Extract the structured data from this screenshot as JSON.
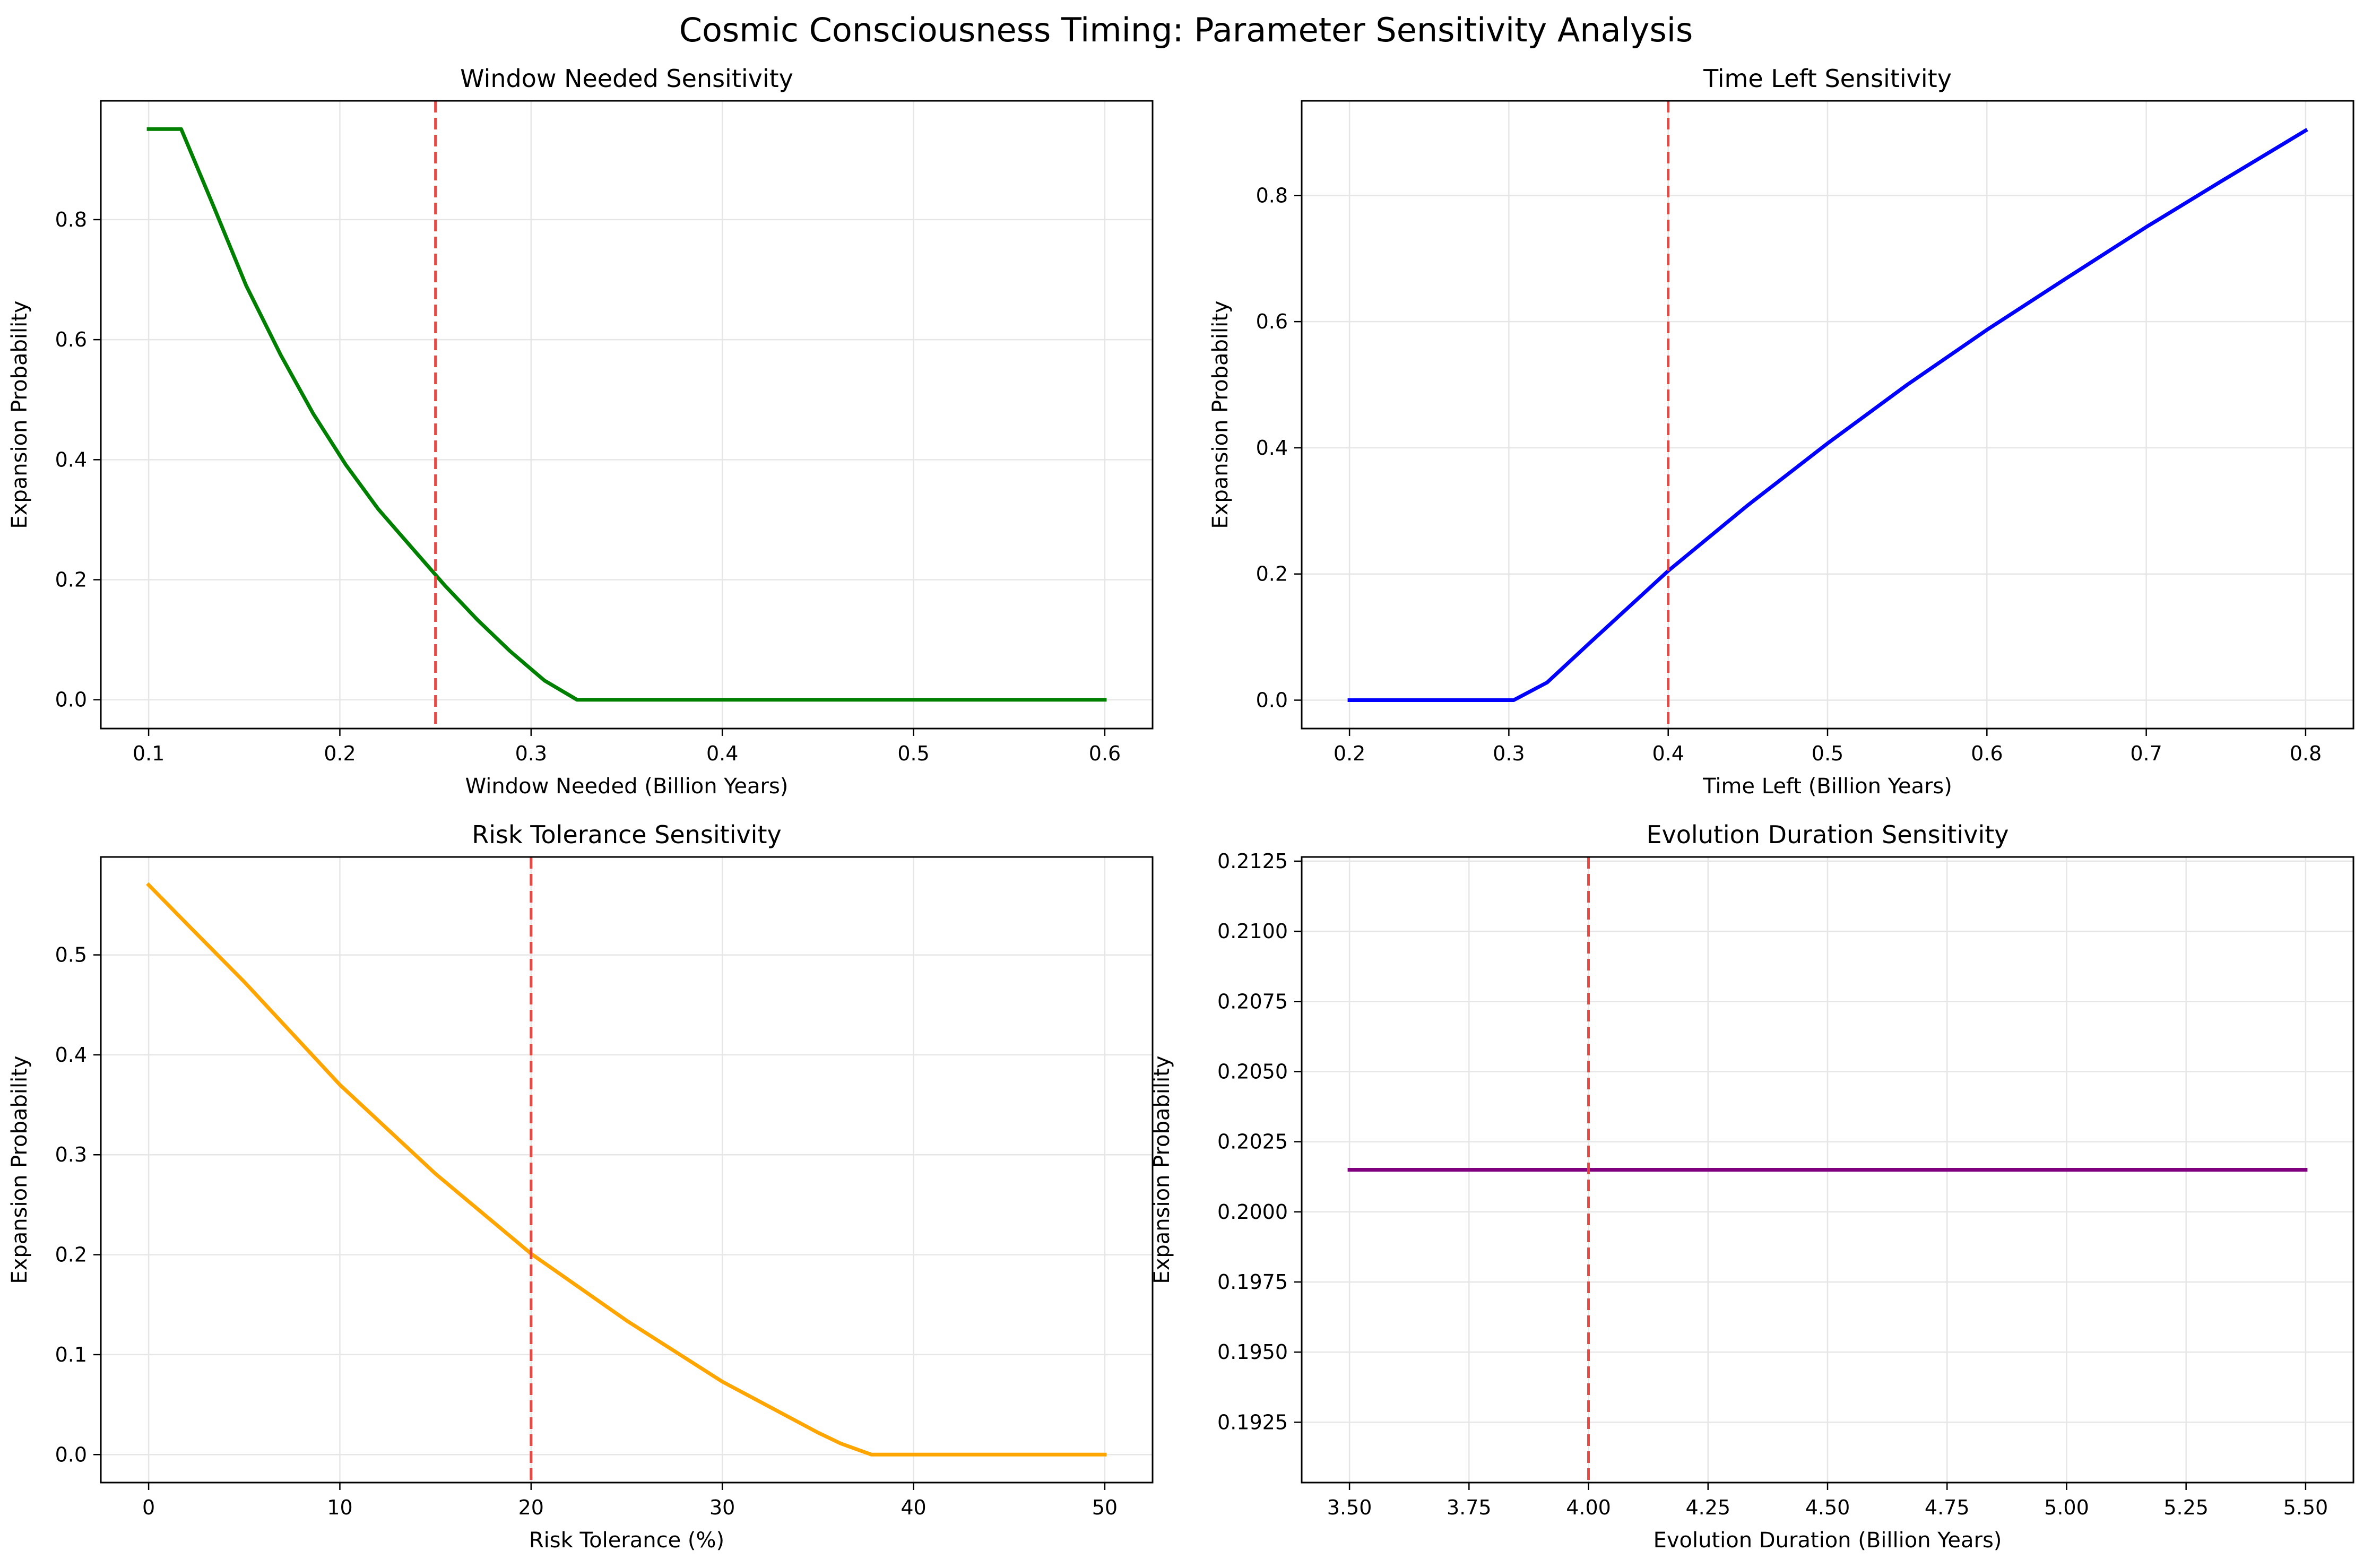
{
  "figure": {
    "suptitle": "Cosmic Consciousness Timing: Parameter Sensitivity Analysis"
  },
  "chart_data": [
    {
      "type": "line",
      "title": "Window Needed Sensitivity",
      "xlabel": "Window Needed (Billion Years)",
      "ylabel": "Expansion Probability",
      "xlim": [
        0.075,
        0.625
      ],
      "ylim": [
        -0.048,
        0.998
      ],
      "xticks": [
        0.1,
        0.2,
        0.3,
        0.4,
        0.5,
        0.6
      ],
      "xtick_labels": [
        "0.1",
        "0.2",
        "0.3",
        "0.4",
        "0.5",
        "0.6"
      ],
      "yticks": [
        0.0,
        0.2,
        0.4,
        0.6,
        0.8
      ],
      "ytick_labels": [
        "0.0",
        "0.2",
        "0.4",
        "0.6",
        "0.8"
      ],
      "grid": true,
      "series": [
        {
          "color": "#008000",
          "x": [
            0.1,
            0.117,
            0.134,
            0.151,
            0.169,
            0.186,
            0.203,
            0.22,
            0.238,
            0.255,
            0.272,
            0.289,
            0.307,
            0.324,
            0.6
          ],
          "y": [
            0.951,
            0.951,
            0.822,
            0.69,
            0.575,
            0.477,
            0.392,
            0.318,
            0.252,
            0.19,
            0.133,
            0.081,
            0.032,
            0.0,
            0.0
          ]
        }
      ],
      "reference_line": {
        "x": 0.25,
        "color": "#e8403a",
        "style": "dashed"
      }
    },
    {
      "type": "line",
      "title": "Time Left Sensitivity",
      "xlabel": "Time Left (Billion Years)",
      "ylabel": "Expansion Probability",
      "xlim": [
        0.17,
        0.83
      ],
      "ylim": [
        -0.045,
        0.95
      ],
      "xticks": [
        0.2,
        0.3,
        0.4,
        0.5,
        0.6,
        0.7,
        0.8
      ],
      "xtick_labels": [
        "0.2",
        "0.3",
        "0.4",
        "0.5",
        "0.6",
        "0.7",
        "0.8"
      ],
      "yticks": [
        0.0,
        0.2,
        0.4,
        0.6,
        0.8
      ],
      "ytick_labels": [
        "0.0",
        "0.2",
        "0.4",
        "0.6",
        "0.8"
      ],
      "grid": true,
      "series": [
        {
          "color": "#0000ff",
          "x": [
            0.2,
            0.3,
            0.303,
            0.324,
            0.35,
            0.4,
            0.45,
            0.5,
            0.55,
            0.6,
            0.65,
            0.7,
            0.75,
            0.8
          ],
          "y": [
            0.0,
            0.0,
            0.0,
            0.028,
            0.089,
            0.205,
            0.309,
            0.407,
            0.5,
            0.587,
            0.669,
            0.75,
            0.827,
            0.903
          ]
        }
      ],
      "reference_line": {
        "x": 0.4,
        "color": "#e8403a",
        "style": "dashed"
      }
    },
    {
      "type": "line",
      "title": "Risk Tolerance Sensitivity",
      "xlabel": "Risk Tolerance (%)",
      "ylabel": "Expansion Probability",
      "xlim": [
        -2.5,
        52.5
      ],
      "ylim": [
        -0.028,
        0.598
      ],
      "xticks": [
        0,
        10,
        20,
        30,
        40,
        50
      ],
      "xtick_labels": [
        "0",
        "10",
        "20",
        "30",
        "40",
        "50"
      ],
      "yticks": [
        0.0,
        0.1,
        0.2,
        0.3,
        0.4,
        0.5
      ],
      "ytick_labels": [
        "0.0",
        "0.1",
        "0.2",
        "0.3",
        "0.4",
        "0.5"
      ],
      "grid": true,
      "series": [
        {
          "color": "#ffa500",
          "x": [
            0,
            2,
            5,
            10,
            15,
            20,
            25,
            30,
            35,
            36.2,
            37.8,
            50
          ],
          "y": [
            0.57,
            0.531,
            0.473,
            0.37,
            0.281,
            0.201,
            0.134,
            0.073,
            0.022,
            0.011,
            0.0,
            0.0
          ]
        }
      ],
      "reference_line": {
        "x": 20,
        "color": "#e8403a",
        "style": "dashed"
      }
    },
    {
      "type": "line",
      "title": "Evolution Duration Sensitivity",
      "xlabel": "Evolution Duration (Billion Years)",
      "ylabel": "Expansion Probability",
      "xlim": [
        3.4,
        5.6
      ],
      "ylim": [
        0.19035,
        0.21265
      ],
      "xticks": [
        3.5,
        3.75,
        4.0,
        4.25,
        4.5,
        4.75,
        5.0,
        5.25,
        5.5
      ],
      "xtick_labels": [
        "3.50",
        "3.75",
        "4.00",
        "4.25",
        "4.50",
        "4.75",
        "5.00",
        "5.25",
        "5.50"
      ],
      "yticks": [
        0.1925,
        0.195,
        0.1975,
        0.2,
        0.2025,
        0.205,
        0.2075,
        0.21,
        0.2125
      ],
      "ytick_labels": [
        "0.1925",
        "0.1950",
        "0.1975",
        "0.2000",
        "0.2025",
        "0.2050",
        "0.2075",
        "0.2100",
        "0.2125"
      ],
      "grid": true,
      "series": [
        {
          "color": "#800080",
          "x": [
            3.5,
            5.5
          ],
          "y": [
            0.2015,
            0.2015
          ]
        }
      ],
      "reference_line": {
        "x": 4.0,
        "color": "#e8403a",
        "style": "dashed"
      }
    }
  ]
}
